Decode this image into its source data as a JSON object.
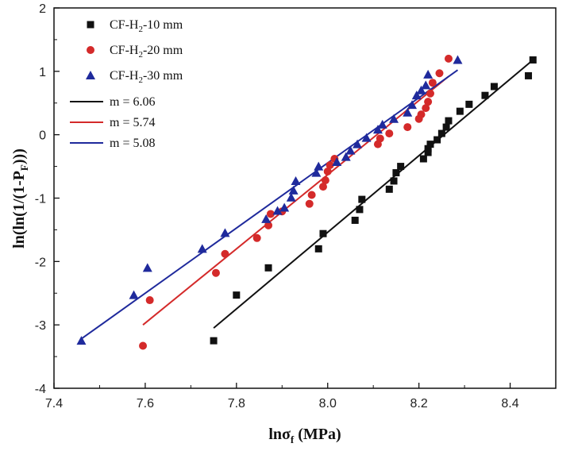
{
  "chart_data": {
    "type": "scatter",
    "xlabel_main": "lnσ",
    "xlabel_sub": "f",
    "xlabel_unit": " (MPa)",
    "ylabel_main": "ln(ln(1/(1-P",
    "ylabel_sub": "F",
    "ylabel_end": ")))",
    "xlim": [
      7.4,
      8.5
    ],
    "ylim": [
      -4,
      2
    ],
    "xticks": [
      7.4,
      7.6,
      7.8,
      8.0,
      8.2,
      8.4
    ],
    "xtick_labels": [
      "7.4",
      "7.6",
      "7.8",
      "8.0",
      "8.2",
      "8.4"
    ],
    "yticks": [
      -4,
      -3,
      -2,
      -1,
      0,
      1,
      2
    ],
    "ytick_labels": [
      "-4",
      "-3",
      "-2",
      "-1",
      "0",
      "1",
      "2"
    ],
    "legend_placement": "top-left",
    "series": [
      {
        "name_main": "CF-H",
        "name_sub": "2",
        "name_end": "-10 mm",
        "marker": "square",
        "color": "#111111",
        "points": [
          [
            7.75,
            -3.25
          ],
          [
            7.8,
            -2.53
          ],
          [
            7.87,
            -2.1
          ],
          [
            7.98,
            -1.8
          ],
          [
            7.99,
            -1.56
          ],
          [
            8.06,
            -1.35
          ],
          [
            8.07,
            -1.18
          ],
          [
            8.075,
            -1.02
          ],
          [
            8.135,
            -0.86
          ],
          [
            8.145,
            -0.73
          ],
          [
            8.15,
            -0.6
          ],
          [
            8.16,
            -0.5
          ],
          [
            8.21,
            -0.38
          ],
          [
            8.22,
            -0.28
          ],
          [
            8.22,
            -0.22
          ],
          [
            8.225,
            -0.15
          ],
          [
            8.24,
            -0.08
          ],
          [
            8.25,
            0.02
          ],
          [
            8.26,
            0.12
          ],
          [
            8.265,
            0.22
          ],
          [
            8.29,
            0.37
          ],
          [
            8.31,
            0.48
          ],
          [
            8.345,
            0.62
          ],
          [
            8.365,
            0.76
          ],
          [
            8.44,
            0.93
          ],
          [
            8.45,
            1.18
          ]
        ]
      },
      {
        "name_main": "CF-H",
        "name_sub": "2",
        "name_end": "-20 mm",
        "marker": "circle",
        "color": "#d42a2a",
        "points": [
          [
            7.595,
            -3.33
          ],
          [
            7.61,
            -2.61
          ],
          [
            7.755,
            -2.18
          ],
          [
            7.775,
            -1.88
          ],
          [
            7.845,
            -1.63
          ],
          [
            7.87,
            -1.43
          ],
          [
            7.875,
            -1.25
          ],
          [
            7.9,
            -1.21
          ],
          [
            7.96,
            -1.09
          ],
          [
            7.965,
            -0.95
          ],
          [
            7.99,
            -0.82
          ],
          [
            7.995,
            -0.72
          ],
          [
            8.0,
            -0.58
          ],
          [
            8.005,
            -0.48
          ],
          [
            8.015,
            -0.38
          ],
          [
            8.11,
            -0.15
          ],
          [
            8.115,
            -0.06
          ],
          [
            8.135,
            0.02
          ],
          [
            8.175,
            0.12
          ],
          [
            8.2,
            0.25
          ],
          [
            8.205,
            0.32
          ],
          [
            8.215,
            0.42
          ],
          [
            8.22,
            0.52
          ],
          [
            8.225,
            0.65
          ],
          [
            8.23,
            0.82
          ],
          [
            8.245,
            0.97
          ],
          [
            8.265,
            1.2
          ]
        ]
      },
      {
        "name_main": "CF-H",
        "name_sub": "2",
        "name_end": "-30 mm",
        "marker": "triangle",
        "color": "#1f2a9c",
        "points": [
          [
            7.46,
            -3.25
          ],
          [
            7.575,
            -2.53
          ],
          [
            7.605,
            -2.1
          ],
          [
            7.725,
            -1.8
          ],
          [
            7.775,
            -1.55
          ],
          [
            7.865,
            -1.33
          ],
          [
            7.89,
            -1.2
          ],
          [
            7.905,
            -1.15
          ],
          [
            7.92,
            -0.99
          ],
          [
            7.925,
            -0.88
          ],
          [
            7.93,
            -0.73
          ],
          [
            7.975,
            -0.6
          ],
          [
            7.98,
            -0.5
          ],
          [
            8.02,
            -0.43
          ],
          [
            8.04,
            -0.35
          ],
          [
            8.05,
            -0.25
          ],
          [
            8.065,
            -0.15
          ],
          [
            8.085,
            -0.05
          ],
          [
            8.11,
            0.08
          ],
          [
            8.12,
            0.16
          ],
          [
            8.145,
            0.25
          ],
          [
            8.175,
            0.35
          ],
          [
            8.185,
            0.47
          ],
          [
            8.195,
            0.62
          ],
          [
            8.205,
            0.7
          ],
          [
            8.215,
            0.78
          ],
          [
            8.22,
            0.95
          ],
          [
            8.285,
            1.18
          ]
        ]
      }
    ],
    "fits": [
      {
        "label": "m = 6.06",
        "color": "#111111",
        "x": [
          7.75,
          8.45
        ],
        "y": [
          -3.05,
          1.18
        ]
      },
      {
        "label": "m = 5.74",
        "color": "#d42a2a",
        "x": [
          7.595,
          8.265
        ],
        "y": [
          -3.0,
          0.92
        ]
      },
      {
        "label": "m = 5.08",
        "color": "#1f2a9c",
        "x": [
          7.46,
          8.285
        ],
        "y": [
          -3.22,
          1.02
        ]
      }
    ]
  }
}
